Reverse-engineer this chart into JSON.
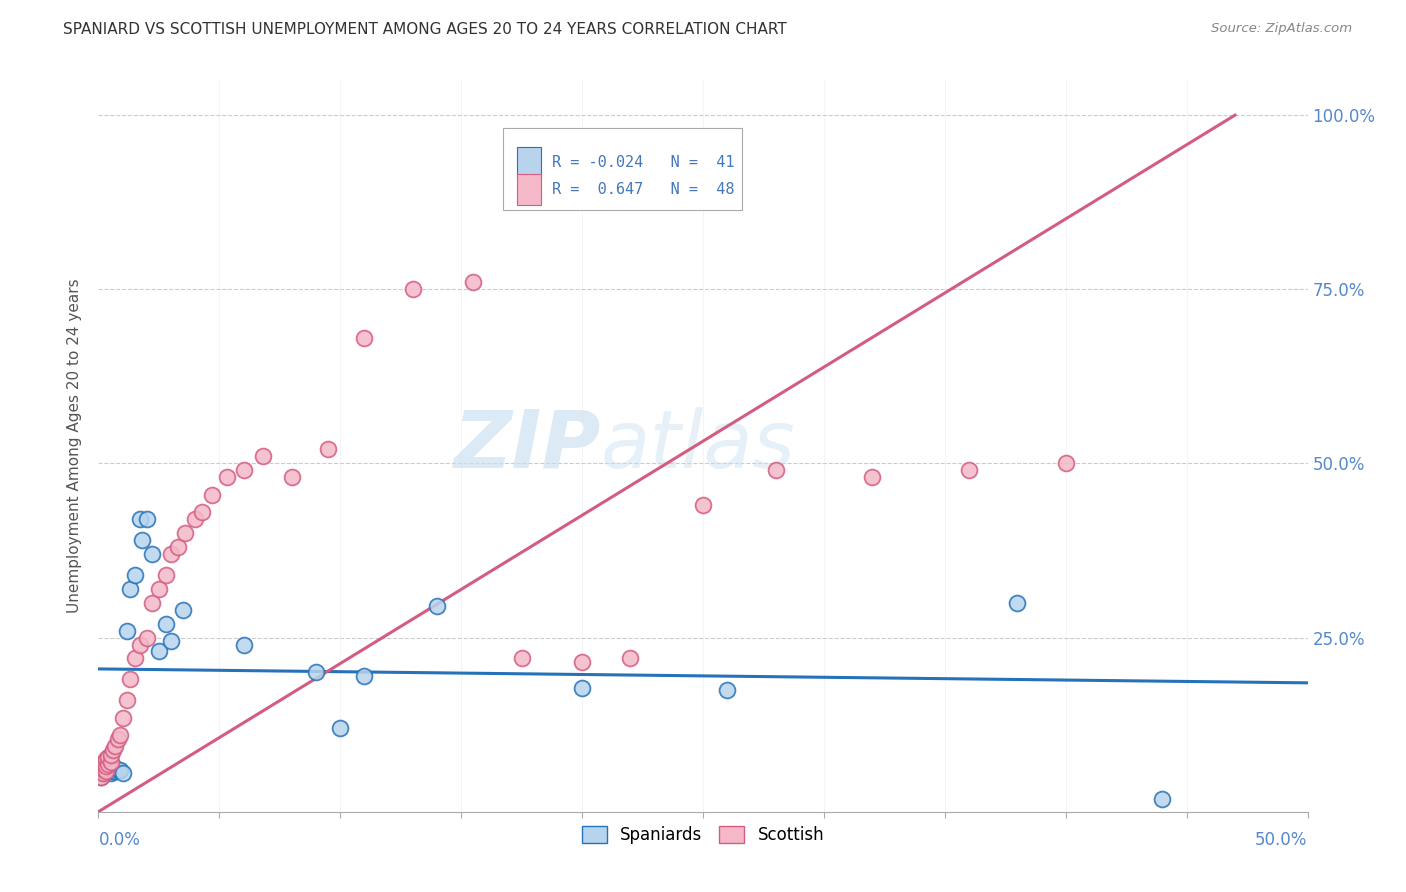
{
  "title": "SPANIARD VS SCOTTISH UNEMPLOYMENT AMONG AGES 20 TO 24 YEARS CORRELATION CHART",
  "source": "Source: ZipAtlas.com",
  "ylabel": "Unemployment Among Ages 20 to 24 years",
  "xlim": [
    0.0,
    0.5
  ],
  "ylim": [
    0.0,
    1.05
  ],
  "spaniards_R": "-0.024",
  "spaniards_N": "41",
  "scottish_R": "0.647",
  "scottish_N": "48",
  "spaniards_color": "#b8d4ed",
  "scottish_color": "#f4b8c8",
  "spaniards_line_color": "#2672b8",
  "scottish_line_color": "#d45c80",
  "legend_label_spaniards": "Spaniards",
  "legend_label_scottish": "Scottish",
  "watermark_zip": "ZIP",
  "watermark_atlas": "atlas",
  "grid_color": "#cccccc",
  "background_color": "#ffffff",
  "title_color": "#333333",
  "axis_color": "#4477bb",
  "tick_color": "#5588cc",
  "sp_x": [
    0.001,
    0.001,
    0.001,
    0.002,
    0.002,
    0.002,
    0.003,
    0.003,
    0.003,
    0.004,
    0.004,
    0.004,
    0.005,
    0.005,
    0.005,
    0.006,
    0.006,
    0.007,
    0.008,
    0.009,
    0.01,
    0.012,
    0.013,
    0.015,
    0.017,
    0.018,
    0.02,
    0.022,
    0.025,
    0.028,
    0.03,
    0.035,
    0.06,
    0.09,
    0.1,
    0.11,
    0.14,
    0.2,
    0.26,
    0.38,
    0.44
  ],
  "sp_y": [
    0.05,
    0.06,
    0.065,
    0.055,
    0.06,
    0.068,
    0.055,
    0.062,
    0.068,
    0.058,
    0.064,
    0.07,
    0.055,
    0.06,
    0.068,
    0.058,
    0.065,
    0.058,
    0.06,
    0.06,
    0.055,
    0.26,
    0.32,
    0.34,
    0.42,
    0.39,
    0.42,
    0.37,
    0.23,
    0.27,
    0.245,
    0.29,
    0.24,
    0.2,
    0.12,
    0.195,
    0.295,
    0.178,
    0.175,
    0.3,
    0.018
  ],
  "sc_x": [
    0.001,
    0.001,
    0.001,
    0.002,
    0.002,
    0.002,
    0.003,
    0.003,
    0.003,
    0.004,
    0.004,
    0.005,
    0.005,
    0.006,
    0.007,
    0.008,
    0.009,
    0.01,
    0.012,
    0.013,
    0.015,
    0.017,
    0.02,
    0.022,
    0.025,
    0.028,
    0.03,
    0.033,
    0.036,
    0.04,
    0.043,
    0.047,
    0.053,
    0.06,
    0.068,
    0.08,
    0.095,
    0.11,
    0.13,
    0.155,
    0.175,
    0.2,
    0.22,
    0.25,
    0.28,
    0.32,
    0.36,
    0.4
  ],
  "sc_y": [
    0.05,
    0.06,
    0.068,
    0.055,
    0.062,
    0.07,
    0.058,
    0.065,
    0.075,
    0.068,
    0.078,
    0.072,
    0.082,
    0.088,
    0.095,
    0.105,
    0.11,
    0.135,
    0.16,
    0.19,
    0.22,
    0.24,
    0.25,
    0.3,
    0.32,
    0.34,
    0.37,
    0.38,
    0.4,
    0.42,
    0.43,
    0.455,
    0.48,
    0.49,
    0.51,
    0.48,
    0.52,
    0.68,
    0.75,
    0.76,
    0.22,
    0.215,
    0.22,
    0.44,
    0.49,
    0.48,
    0.49,
    0.5
  ]
}
